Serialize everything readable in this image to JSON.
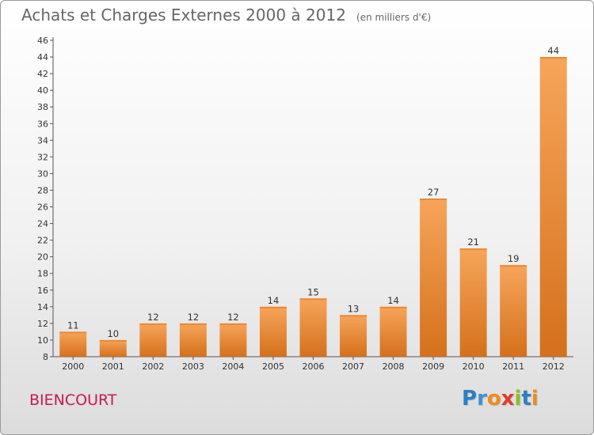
{
  "header": {
    "title": "Achats et Charges Externes 2000 à 2012",
    "unit": "(en milliers d'€)"
  },
  "footer": {
    "commune": "BIENCOURT",
    "logo_letters": [
      {
        "ch": "P",
        "color": "#2a7fc1"
      },
      {
        "ch": "r",
        "color": "#3a93d0"
      },
      {
        "ch": "o",
        "color": "#f08a1c"
      },
      {
        "ch": "x",
        "color": "#e23a2a"
      },
      {
        "ch": "i",
        "color": "#8bbf26"
      },
      {
        "ch": "t",
        "color": "#2a7fc1"
      },
      {
        "ch": "i",
        "color": "#f08a1c"
      }
    ]
  },
  "chart_data": {
    "type": "bar",
    "title": "Achats et Charges Externes 2000 à 2012",
    "unit": "(en milliers d'€)",
    "categories": [
      "2000",
      "2001",
      "2002",
      "2003",
      "2004",
      "2005",
      "2006",
      "2007",
      "2008",
      "2009",
      "2010",
      "2011",
      "2012"
    ],
    "values": [
      11,
      10,
      12,
      12,
      12,
      14,
      15,
      13,
      14,
      27,
      21,
      19,
      44
    ],
    "ylim": [
      8,
      46
    ],
    "ytick_step": 2,
    "grid": false,
    "bar_color_light": "#f7a55a",
    "bar_color_dark": "#d5701c"
  }
}
